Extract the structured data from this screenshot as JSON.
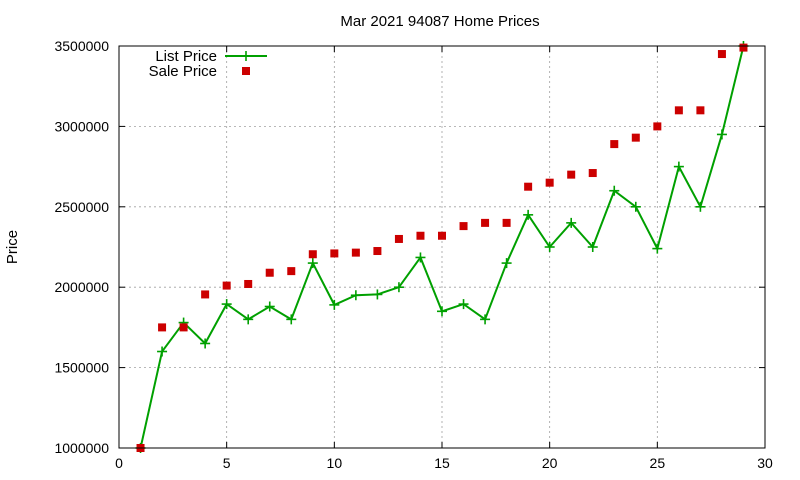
{
  "chart_data": {
    "type": "line",
    "title": "Mar 2021 94087 Home Prices",
    "xlabel": "",
    "ylabel": "Price",
    "xlim": [
      0,
      30
    ],
    "ylim": [
      1000000,
      3500000
    ],
    "xticks": [
      0,
      5,
      10,
      15,
      20,
      25,
      30
    ],
    "yticks": [
      1000000,
      1500000,
      2000000,
      2500000,
      3000000,
      3500000
    ],
    "grid": true,
    "legend_position": "top-left",
    "series": [
      {
        "name": "List Price",
        "style": "line-points",
        "color": "#00a000",
        "marker": "plus",
        "x": [
          1,
          2,
          3,
          4,
          5,
          6,
          7,
          8,
          9,
          10,
          11,
          12,
          13,
          14,
          15,
          16,
          17,
          18,
          19,
          20,
          21,
          22,
          23,
          24,
          25,
          26,
          27,
          28,
          29
        ],
        "y": [
          1000000,
          1600000,
          1780000,
          1650000,
          1895000,
          1800000,
          1880000,
          1800000,
          2150000,
          1890000,
          1950000,
          1955000,
          2000000,
          2185000,
          1850000,
          1895000,
          1800000,
          2150000,
          2450000,
          2250000,
          2400000,
          2250000,
          2600000,
          2500000,
          2240000,
          2750000,
          2500000,
          2950000,
          3500000
        ]
      },
      {
        "name": "Sale Price",
        "style": "points",
        "color": "#cc0000",
        "marker": "square",
        "x": [
          1,
          2,
          3,
          4,
          5,
          6,
          7,
          8,
          9,
          10,
          11,
          12,
          13,
          14,
          15,
          16,
          17,
          18,
          19,
          20,
          21,
          22,
          23,
          24,
          25,
          26,
          27,
          28,
          29
        ],
        "y": [
          1000000,
          1750000,
          1750000,
          1955000,
          2010000,
          2020000,
          2090000,
          2100000,
          2205000,
          2210000,
          2215000,
          2225000,
          2300000,
          2320000,
          2320000,
          2380000,
          2400000,
          2400000,
          2625000,
          2650000,
          2700000,
          2710000,
          2890000,
          2930000,
          3000000,
          3100000,
          3100000,
          3450000,
          3490000
        ]
      }
    ]
  }
}
